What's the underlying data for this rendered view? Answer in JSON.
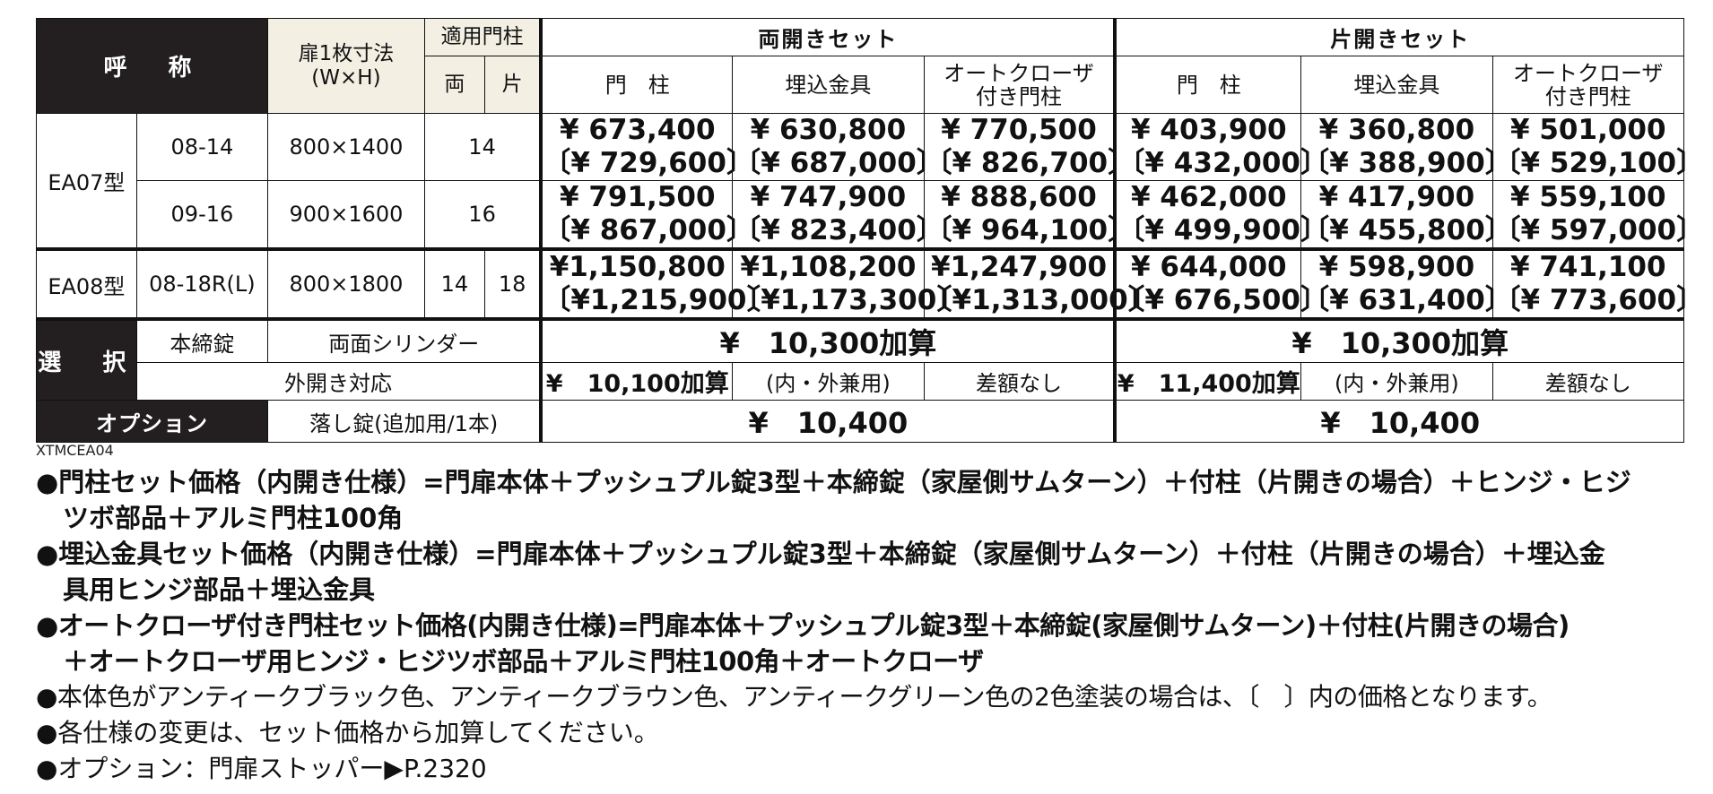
{
  "header": {
    "name": "呼　称",
    "door_size": "扉1枚寸法",
    "door_size_unit": "(W×H)",
    "applicable_post": "適用門柱",
    "both": "両",
    "single": "片",
    "double_set": "両開きセット",
    "single_set": "片開きセット",
    "post": "門　柱",
    "embedded": "埋込金具",
    "auto_closer_1": "オートクローザ",
    "auto_closer_2": "付き門柱"
  },
  "rows": [
    {
      "model": "EA07型",
      "code": "08-14",
      "size": "800×1400",
      "post": "14",
      "double": [
        [
          "¥ 673,400",
          "〔¥ 729,600〕"
        ],
        [
          "¥ 630,800",
          "〔¥ 687,000〕"
        ],
        [
          "¥ 770,500",
          "〔¥ 826,700〕"
        ]
      ],
      "single": [
        [
          "¥ 403,900",
          "〔¥ 432,000〕"
        ],
        [
          "¥ 360,800",
          "〔¥ 388,900〕"
        ],
        [
          "¥ 501,000",
          "〔¥ 529,100〕"
        ]
      ]
    },
    {
      "code": "09-16",
      "size": "900×1600",
      "post": "16",
      "double": [
        [
          "¥ 791,500",
          "〔¥ 867,000〕"
        ],
        [
          "¥ 747,900",
          "〔¥ 823,400〕"
        ],
        [
          "¥ 888,600",
          "〔¥ 964,100〕"
        ]
      ],
      "single": [
        [
          "¥ 462,000",
          "〔¥ 499,900〕"
        ],
        [
          "¥ 417,900",
          "〔¥ 455,800〕"
        ],
        [
          "¥ 559,100",
          "〔¥ 597,000〕"
        ]
      ]
    },
    {
      "model": "EA08型",
      "code": "08-18R(L)",
      "size": "800×1800",
      "post_both": "14",
      "post_single": "18",
      "double": [
        [
          "¥1,150,800",
          "〔¥1,215,900〕"
        ],
        [
          "¥1,108,200",
          "〔¥1,173,300〕"
        ],
        [
          "¥1,247,900",
          "〔¥1,313,000〕"
        ]
      ],
      "single": [
        [
          "¥ 644,000",
          "〔¥ 676,500〕"
        ],
        [
          "¥ 598,900",
          "〔¥ 631,400〕"
        ],
        [
          "¥ 741,100",
          "〔¥ 773,600〕"
        ]
      ]
    }
  ],
  "selection": {
    "label": "選　択",
    "main_lock": "本締錠",
    "double_cylinder": "両面シリンダー",
    "double_cylinder_price_double": "¥　10,300加算",
    "double_cylinder_price_single": "¥　10,300加算",
    "outward": "外開き対応",
    "outward_price_double": "¥　10,100加算",
    "outward_price_single": "¥　11,400加算",
    "inout": "(内・外兼用)",
    "no_diff": "差額なし"
  },
  "option": {
    "label": "オプション",
    "drop_lock": "落し錠(追加用/1本)",
    "price_double": "¥　10,400",
    "price_single": "¥　10,400"
  },
  "doc_code": "XTMCEA04",
  "notes": [
    {
      "line1": "●門柱セット価格（内開き仕様）=門扉本体＋プッシュプル錠3型＋本締錠（家屋側サムターン）＋付柱（片開きの場合）＋ヒンジ・ヒジ",
      "line2": "ツボ部品＋アルミ門柱100角"
    },
    {
      "line1": "●埋込金具セット価格（内開き仕様）=門扉本体＋プッシュプル錠3型＋本締錠（家屋側サムターン）＋付柱（片開きの場合）＋埋込金",
      "line2": "具用ヒンジ部品＋埋込金具"
    },
    {
      "line1": "●オートクローザ付き門柱セット価格(内開き仕様)=門扉本体＋プッシュプル錠3型＋本締錠(家屋側サムターン)＋付柱(片開きの場合)",
      "line2": "＋オートクローザ用ヒンジ・ヒジツボ部品＋アルミ門柱100角＋オートクローザ"
    },
    {
      "line1": "●本体色がアンティークブラック色、アンティークブラウン色、アンティークグリーン色の2色塗装の場合は、〔　〕内の価格となります。"
    },
    {
      "line1": "●各仕様の変更は、セット価格から加算してください。"
    },
    {
      "line1": "●オプション：門扉ストッパー▶P.2320"
    }
  ]
}
